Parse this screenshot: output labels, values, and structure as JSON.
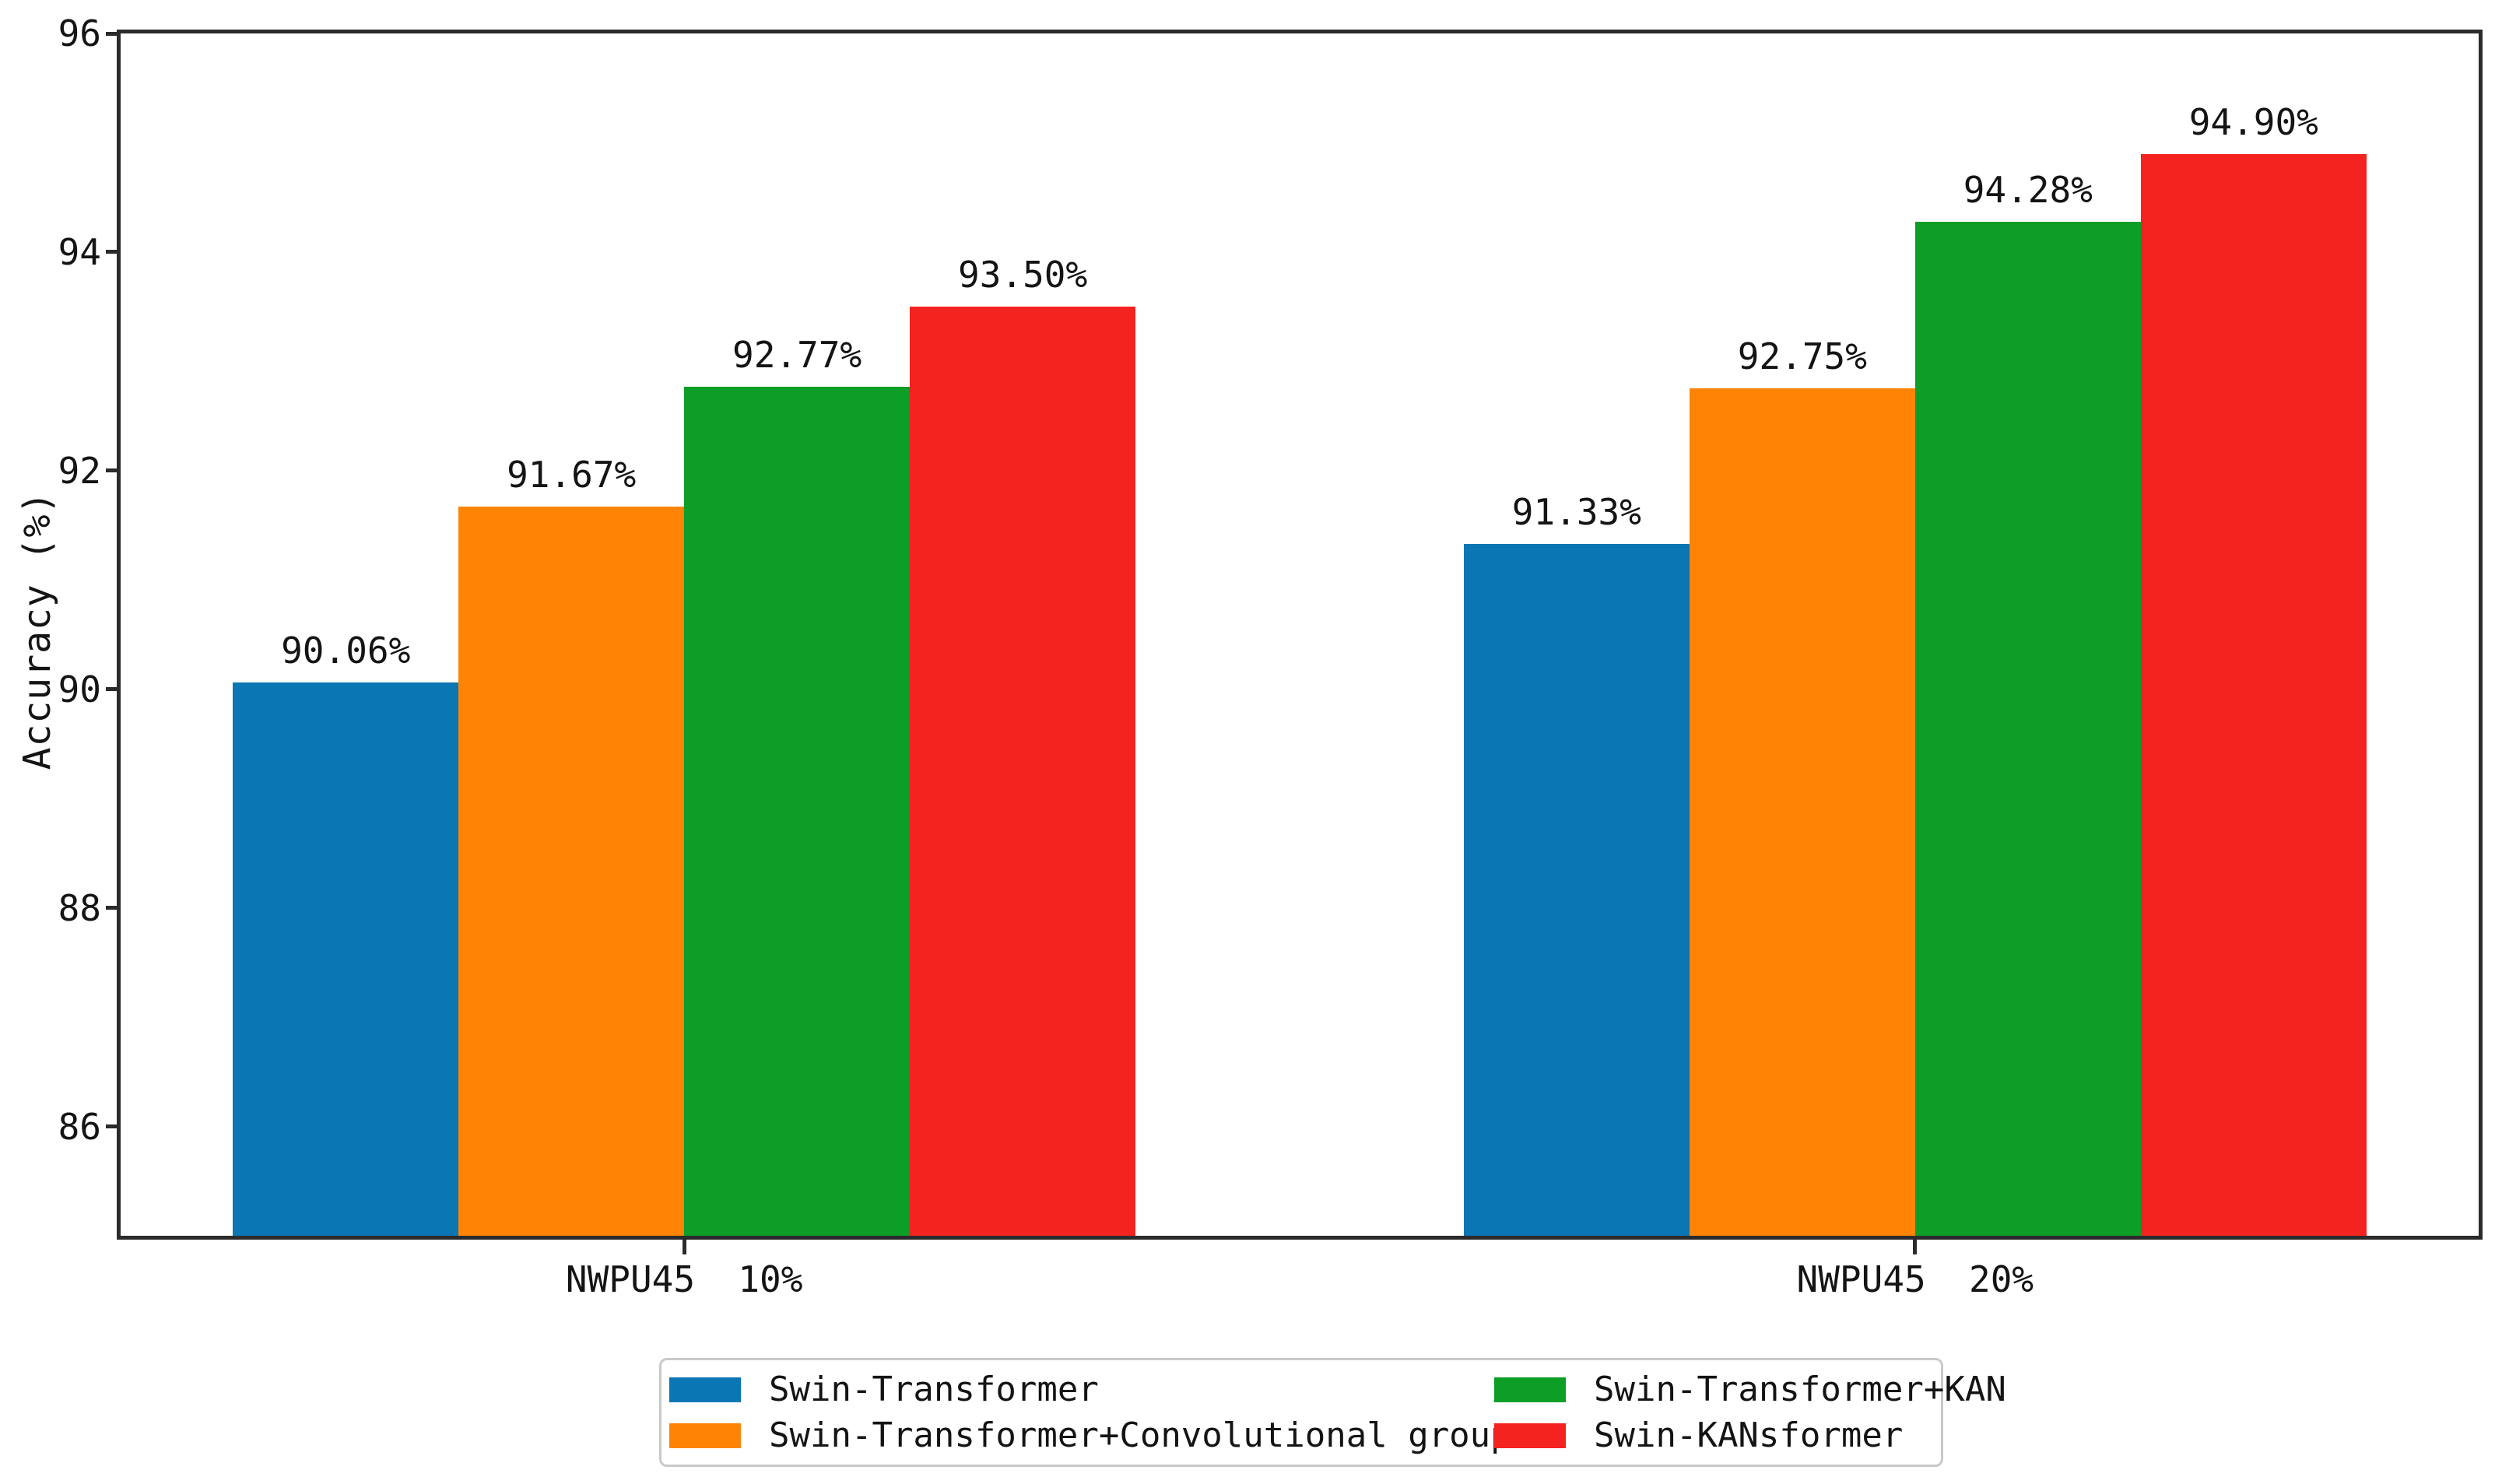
{
  "figure": {
    "background": "#ffffff",
    "spine_color": "#2b2b2b",
    "text_color": "#141414",
    "legend_border_color": "#c9c9c9"
  },
  "chart_data": {
    "type": "bar",
    "title": "",
    "xlabel": "",
    "ylabel": "Accuracy (%)",
    "ylim": [
      85,
      96
    ],
    "yticks": [
      86,
      88,
      90,
      92,
      94,
      96
    ],
    "grid": false,
    "legend_position": "bottom-center",
    "legend_columns": 2,
    "categories": [
      "NWPU45 10%",
      "NWPU45 20%"
    ],
    "series": [
      {
        "name": "Swin-Transformer",
        "color": "#0b76b4",
        "values": [
          90.06,
          91.33
        ],
        "labels": [
          "90.06%",
          "91.33%"
        ]
      },
      {
        "name": "Swin-Transformer+Convolutional group",
        "color": "#ff8405",
        "values": [
          91.67,
          92.75
        ],
        "labels": [
          "91.67%",
          "92.75%"
        ]
      },
      {
        "name": "Swin-Transformer+KAN",
        "color": "#0c9e26",
        "values": [
          92.77,
          94.28
        ],
        "labels": [
          "92.77%",
          "94.28%"
        ]
      },
      {
        "name": "Swin-KANsformer",
        "color": "#f4231f",
        "values": [
          93.5,
          94.9
        ],
        "labels": [
          "93.50%",
          "94.90%"
        ]
      }
    ],
    "layout": {
      "group_center_frac": [
        0.239,
        0.761
      ],
      "bar_width_frac": 0.0957
    }
  }
}
